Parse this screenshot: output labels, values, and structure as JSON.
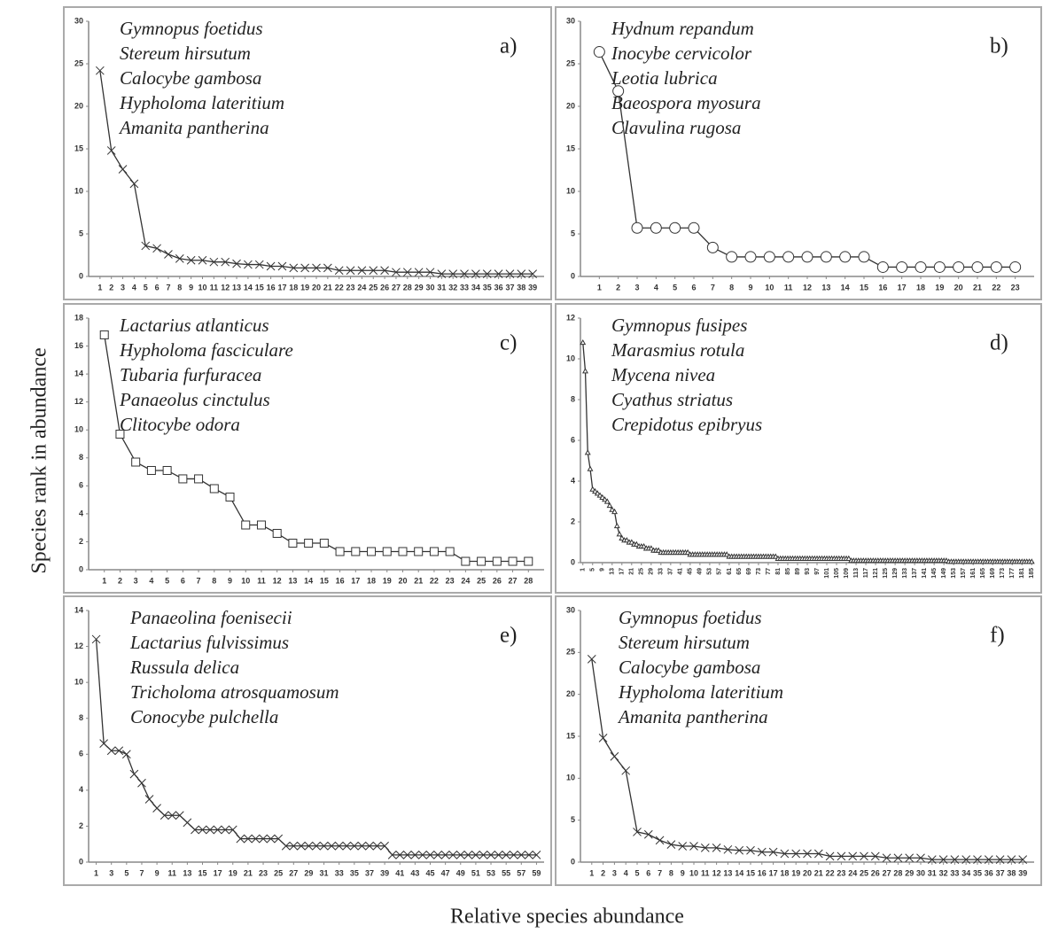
{
  "xlabel": "Relative species abundance",
  "ylabel": "Species rank in abundance",
  "chart_data": [
    {
      "type": "line",
      "label": "a)",
      "marker": "x",
      "color": "#333333",
      "annotations": [
        "Gymnopus foetidus",
        "Stereum hirsutum",
        "Calocybe gambosa",
        "Hypholoma lateritium",
        "Amanita pantherina"
      ],
      "x": [
        1,
        2,
        3,
        4,
        5,
        6,
        7,
        8,
        9,
        10,
        11,
        12,
        13,
        14,
        15,
        16,
        17,
        18,
        19,
        20,
        21,
        22,
        23,
        24,
        25,
        26,
        27,
        28,
        29,
        30,
        31,
        32,
        33,
        34,
        35,
        36,
        37,
        38,
        39
      ],
      "values": [
        24.2,
        14.8,
        12.6,
        10.9,
        3.6,
        3.3,
        2.6,
        2.1,
        1.9,
        1.9,
        1.7,
        1.7,
        1.5,
        1.4,
        1.4,
        1.2,
        1.2,
        1.0,
        1.0,
        1.0,
        1.0,
        0.7,
        0.7,
        0.7,
        0.7,
        0.7,
        0.5,
        0.5,
        0.5,
        0.5,
        0.3,
        0.3,
        0.3,
        0.3,
        0.3,
        0.3,
        0.3,
        0.3,
        0.3
      ],
      "xlim": [
        0,
        40
      ],
      "xticks": [
        1,
        2,
        3,
        4,
        5,
        6,
        7,
        8,
        9,
        10,
        11,
        12,
        13,
        14,
        15,
        16,
        17,
        18,
        19,
        20,
        21,
        22,
        23,
        24,
        25,
        26,
        27,
        28,
        29,
        30,
        31,
        32,
        33,
        34,
        35,
        36,
        37,
        38,
        39
      ],
      "ylim": [
        0,
        30
      ],
      "yticks": [
        0,
        5,
        10,
        15,
        20,
        25,
        30
      ]
    },
    {
      "type": "line",
      "label": "b)",
      "marker": "circle",
      "color": "#333333",
      "annotations": [
        "Hydnum repandum",
        "Inocybe cervicolor",
        "Leotia lubrica",
        "Baeospora myosura",
        "Clavulina rugosa"
      ],
      "x": [
        1,
        2,
        3,
        4,
        5,
        6,
        7,
        8,
        9,
        10,
        11,
        12,
        13,
        14,
        15,
        16,
        17,
        18,
        19,
        20,
        21,
        22,
        23
      ],
      "values": [
        26.4,
        21.8,
        5.7,
        5.7,
        5.7,
        5.7,
        3.4,
        2.3,
        2.3,
        2.3,
        2.3,
        2.3,
        2.3,
        2.3,
        2.3,
        1.1,
        1.1,
        1.1,
        1.1,
        1.1,
        1.1,
        1.1,
        1.1
      ],
      "xlim": [
        0,
        24
      ],
      "xticks": [
        1,
        2,
        3,
        4,
        5,
        6,
        7,
        8,
        9,
        10,
        11,
        12,
        13,
        14,
        15,
        16,
        17,
        18,
        19,
        20,
        21,
        22,
        23
      ],
      "ylim": [
        0,
        30
      ],
      "yticks": [
        0,
        5,
        10,
        15,
        20,
        25,
        30
      ]
    },
    {
      "type": "line",
      "label": "c)",
      "marker": "square",
      "color": "#333333",
      "annotations": [
        "Lactarius atlanticus",
        "Hypholoma fasciculare",
        "Tubaria furfuracea",
        "Panaeolus cinctulus",
        "Clitocybe odora"
      ],
      "x": [
        1,
        2,
        3,
        4,
        5,
        6,
        7,
        8,
        9,
        10,
        11,
        12,
        13,
        14,
        15,
        16,
        17,
        18,
        19,
        20,
        21,
        22,
        23,
        24,
        25,
        26,
        27,
        28
      ],
      "values": [
        16.8,
        9.7,
        7.7,
        7.1,
        7.1,
        6.5,
        6.5,
        5.8,
        5.2,
        3.2,
        3.2,
        2.6,
        1.9,
        1.9,
        1.9,
        1.3,
        1.3,
        1.3,
        1.3,
        1.3,
        1.3,
        1.3,
        1.3,
        0.6,
        0.6,
        0.6,
        0.6,
        0.6
      ],
      "xlim": [
        0,
        29
      ],
      "xticks": [
        1,
        2,
        3,
        4,
        5,
        6,
        7,
        8,
        9,
        10,
        11,
        12,
        13,
        14,
        15,
        16,
        17,
        18,
        19,
        20,
        21,
        22,
        23,
        24,
        25,
        26,
        27,
        28
      ],
      "ylim": [
        0,
        18
      ],
      "yticks": [
        0,
        2,
        4,
        6,
        8,
        10,
        12,
        14,
        16,
        18
      ]
    },
    {
      "type": "line",
      "label": "d)",
      "marker": "triangle",
      "color": "#333333",
      "annotations": [
        "Gymnopus fusipes",
        "Marasmius rotula",
        "Mycena nivea",
        "Cyathus striatus",
        "Crepidotus epibryus"
      ],
      "x": [
        1,
        2,
        3,
        4,
        5,
        6,
        7,
        8,
        9,
        10,
        11,
        12,
        13,
        14,
        15,
        16,
        17,
        18,
        19,
        20,
        21,
        22,
        23,
        24,
        25,
        26,
        27,
        28,
        29,
        30,
        31,
        32,
        33,
        34,
        35,
        36,
        37,
        38,
        39,
        40,
        41,
        42,
        43,
        44,
        45,
        46,
        47,
        48,
        49,
        50,
        51,
        52,
        53,
        54,
        55,
        56,
        57,
        58,
        59,
        60,
        61,
        62,
        63,
        64,
        65,
        66,
        67,
        68,
        69,
        70,
        71,
        72,
        73,
        74,
        75,
        76,
        77,
        78,
        79,
        80,
        81,
        82,
        83,
        84,
        85,
        86,
        87,
        88,
        89,
        90,
        91,
        92,
        93,
        94,
        95,
        96,
        97,
        98,
        99,
        100,
        101,
        102,
        103,
        104,
        105,
        106,
        107,
        108,
        109,
        110,
        111,
        112,
        113,
        114,
        115,
        116,
        117,
        118,
        119,
        120,
        121,
        122,
        123,
        124,
        125,
        126,
        127,
        128,
        129,
        130,
        131,
        132,
        133,
        134,
        135,
        136,
        137,
        138,
        139,
        140,
        141,
        142,
        143,
        144,
        145,
        146,
        147,
        148,
        149,
        150,
        151,
        152,
        153,
        154,
        155,
        156,
        157,
        158,
        159,
        160,
        161,
        162,
        163,
        164,
        165,
        166,
        167,
        168,
        169,
        170,
        171,
        172,
        173,
        174,
        175,
        176,
        177,
        178,
        179,
        180,
        181,
        182,
        183,
        184,
        185
      ],
      "values": [
        10.8,
        9.4,
        5.4,
        4.6,
        3.6,
        3.5,
        3.4,
        3.3,
        3.2,
        3.1,
        3.0,
        2.8,
        2.6,
        2.5,
        1.8,
        1.4,
        1.2,
        1.1,
        1.1,
        1.0,
        1.0,
        0.9,
        0.9,
        0.8,
        0.8,
        0.8,
        0.7,
        0.7,
        0.7,
        0.6,
        0.6,
        0.6,
        0.5,
        0.5,
        0.5,
        0.5,
        0.5,
        0.5,
        0.5,
        0.5,
        0.5,
        0.5,
        0.5,
        0.5,
        0.4,
        0.4,
        0.4,
        0.4,
        0.4,
        0.4,
        0.4,
        0.4,
        0.4,
        0.4,
        0.4,
        0.4,
        0.4,
        0.4,
        0.4,
        0.4,
        0.3,
        0.3,
        0.3,
        0.3,
        0.3,
        0.3,
        0.3,
        0.3,
        0.3,
        0.3,
        0.3,
        0.3,
        0.3,
        0.3,
        0.3,
        0.3,
        0.3,
        0.3,
        0.3,
        0.3,
        0.2,
        0.2,
        0.2,
        0.2,
        0.2,
        0.2,
        0.2,
        0.2,
        0.2,
        0.2,
        0.2,
        0.2,
        0.2,
        0.2,
        0.2,
        0.2,
        0.2,
        0.2,
        0.2,
        0.2,
        0.2,
        0.2,
        0.2,
        0.2,
        0.2,
        0.2,
        0.2,
        0.2,
        0.2,
        0.2,
        0.1,
        0.1,
        0.1,
        0.1,
        0.1,
        0.1,
        0.1,
        0.1,
        0.1,
        0.1,
        0.1,
        0.1,
        0.1,
        0.1,
        0.1,
        0.1,
        0.1,
        0.1,
        0.1,
        0.1,
        0.1,
        0.1,
        0.1,
        0.1,
        0.1,
        0.1,
        0.1,
        0.1,
        0.1,
        0.1,
        0.1,
        0.1,
        0.1,
        0.1,
        0.1,
        0.1,
        0.1,
        0.1,
        0.1,
        0.1,
        0.05,
        0.05,
        0.05,
        0.05,
        0.05,
        0.05,
        0.05,
        0.05,
        0.05,
        0.05,
        0.05,
        0.05,
        0.05,
        0.05,
        0.05,
        0.05,
        0.05,
        0.05,
        0.05,
        0.05,
        0.05,
        0.05,
        0.05,
        0.05,
        0.05,
        0.05,
        0.05,
        0.05,
        0.05,
        0.05,
        0.05,
        0.05,
        0.05,
        0.05,
        0.05
      ],
      "xlim": [
        0,
        186
      ],
      "xticks": [
        1,
        5,
        9,
        13,
        17,
        21,
        25,
        29,
        33,
        37,
        41,
        45,
        49,
        53,
        57,
        61,
        65,
        69,
        73,
        77,
        81,
        85,
        89,
        93,
        97,
        101,
        105,
        109,
        113,
        117,
        121,
        125,
        129,
        133,
        137,
        141,
        145,
        149,
        153,
        157,
        161,
        165,
        169,
        173,
        177,
        181,
        185
      ],
      "ylim": [
        0,
        12
      ],
      "yticks": [
        0,
        2,
        4,
        6,
        8,
        10,
        12
      ]
    },
    {
      "type": "line",
      "label": "e)",
      "marker": "x",
      "color": "#333333",
      "annotations": [
        "Panaeolina foenisecii",
        "Lactarius fulvissimus",
        "Russula delica",
        "Tricholoma atrosquamosum",
        "Conocybe pulchella"
      ],
      "x": [
        1,
        2,
        3,
        4,
        5,
        6,
        7,
        8,
        9,
        10,
        11,
        12,
        13,
        14,
        15,
        16,
        17,
        18,
        19,
        20,
        21,
        22,
        23,
        24,
        25,
        26,
        27,
        28,
        29,
        30,
        31,
        32,
        33,
        34,
        35,
        36,
        37,
        38,
        39,
        40,
        41,
        42,
        43,
        44,
        45,
        46,
        47,
        48,
        49,
        50,
        51,
        52,
        53,
        54,
        55,
        56,
        57,
        58,
        59
      ],
      "values": [
        12.4,
        6.6,
        6.2,
        6.2,
        6.0,
        4.9,
        4.4,
        3.5,
        3.0,
        2.6,
        2.6,
        2.6,
        2.2,
        1.8,
        1.8,
        1.8,
        1.8,
        1.8,
        1.8,
        1.3,
        1.3,
        1.3,
        1.3,
        1.3,
        1.3,
        0.9,
        0.9,
        0.9,
        0.9,
        0.9,
        0.9,
        0.9,
        0.9,
        0.9,
        0.9,
        0.9,
        0.9,
        0.9,
        0.9,
        0.4,
        0.4,
        0.4,
        0.4,
        0.4,
        0.4,
        0.4,
        0.4,
        0.4,
        0.4,
        0.4,
        0.4,
        0.4,
        0.4,
        0.4,
        0.4,
        0.4,
        0.4,
        0.4,
        0.4
      ],
      "xlim": [
        0,
        60
      ],
      "xticks": [
        1,
        3,
        5,
        7,
        9,
        11,
        13,
        15,
        17,
        19,
        21,
        23,
        25,
        27,
        29,
        31,
        33,
        35,
        37,
        39,
        41,
        43,
        45,
        47,
        49,
        51,
        53,
        55,
        57,
        59
      ],
      "ylim": [
        0,
        14
      ],
      "yticks": [
        0,
        2,
        4,
        6,
        8,
        10,
        12,
        14
      ]
    },
    {
      "type": "line",
      "label": "f)",
      "marker": "x",
      "color": "#333333",
      "annotations": [
        "Gymnopus foetidus",
        "Stereum hirsutum",
        "Calocybe gambosa",
        "Hypholoma lateritium",
        "Amanita pantherina"
      ],
      "x": [
        1,
        2,
        3,
        4,
        5,
        6,
        7,
        8,
        9,
        10,
        11,
        12,
        13,
        14,
        15,
        16,
        17,
        18,
        19,
        20,
        21,
        22,
        23,
        24,
        25,
        26,
        27,
        28,
        29,
        30,
        31,
        32,
        33,
        34,
        35,
        36,
        37,
        38,
        39
      ],
      "values": [
        24.2,
        14.8,
        12.6,
        10.9,
        3.6,
        3.3,
        2.6,
        2.1,
        1.9,
        1.9,
        1.7,
        1.7,
        1.5,
        1.4,
        1.4,
        1.2,
        1.2,
        1.0,
        1.0,
        1.0,
        1.0,
        0.7,
        0.7,
        0.7,
        0.7,
        0.7,
        0.5,
        0.5,
        0.5,
        0.5,
        0.3,
        0.3,
        0.3,
        0.3,
        0.3,
        0.3,
        0.3,
        0.3,
        0.3
      ],
      "xlim": [
        0,
        40
      ],
      "xticks": [
        1,
        2,
        3,
        4,
        5,
        6,
        7,
        8,
        9,
        10,
        11,
        12,
        13,
        14,
        15,
        16,
        17,
        18,
        19,
        20,
        21,
        22,
        23,
        24,
        25,
        26,
        27,
        28,
        29,
        30,
        31,
        32,
        33,
        34,
        35,
        36,
        37,
        38,
        39
      ],
      "ylim": [
        0,
        30
      ],
      "yticks": [
        0,
        5,
        10,
        15,
        20,
        25,
        30
      ]
    }
  ]
}
